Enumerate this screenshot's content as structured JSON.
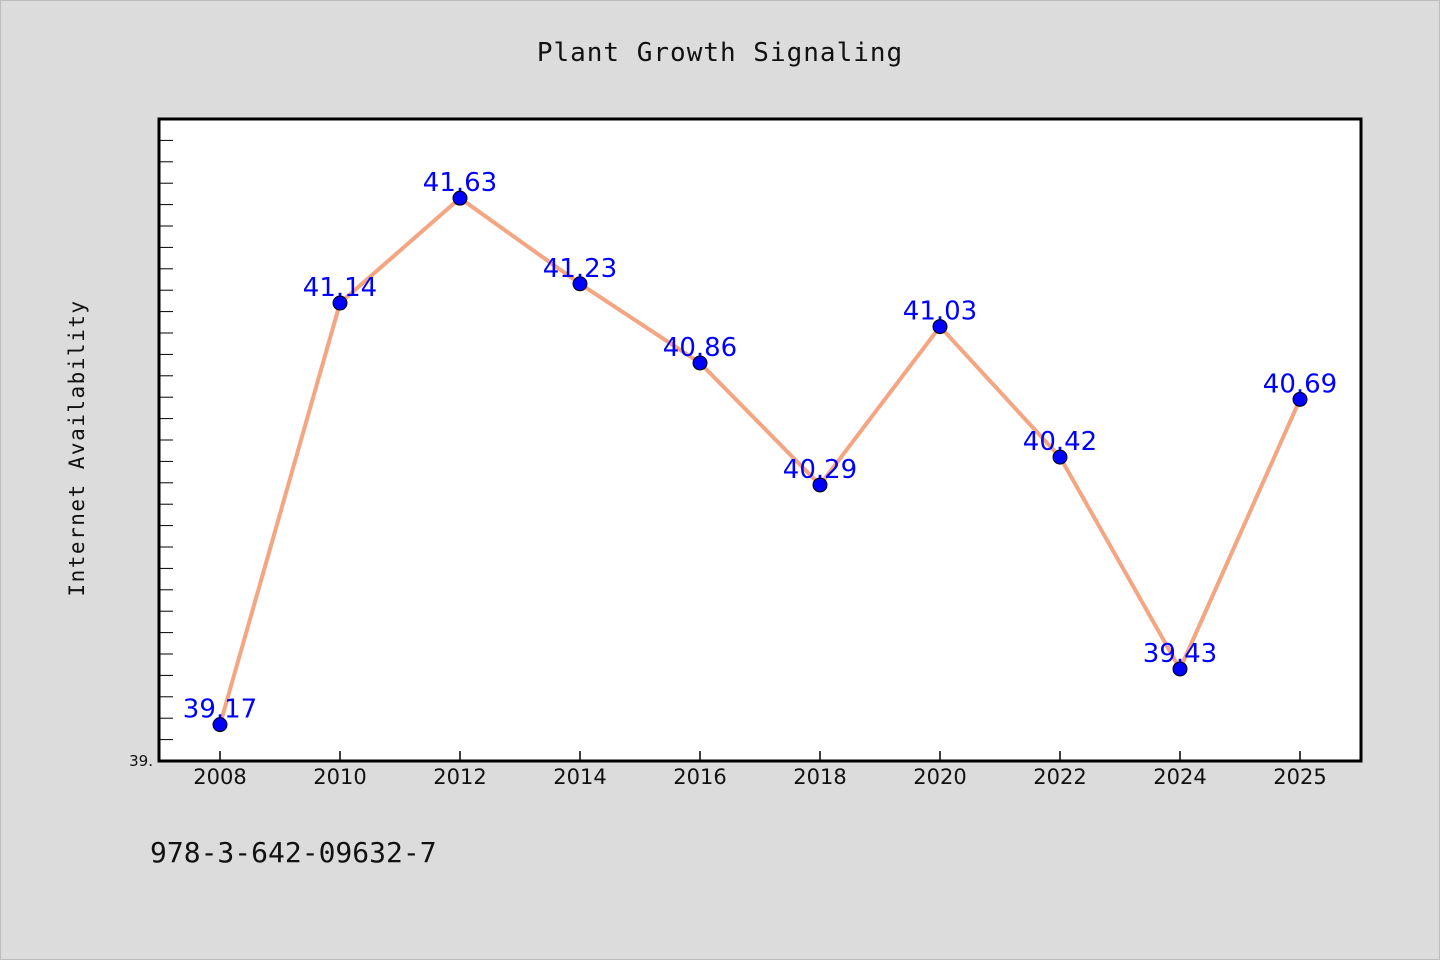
{
  "chart_data": {
    "type": "line",
    "title": "Plant Growth Signaling",
    "xlabel": "",
    "ylabel": "Internet Availability",
    "categories": [
      "2008",
      "2010",
      "2012",
      "2014",
      "2016",
      "2018",
      "2020",
      "2022",
      "2024",
      "2025"
    ],
    "series": [
      {
        "values": [
          39.17,
          41.14,
          41.63,
          41.23,
          40.86,
          40.29,
          41.03,
          40.42,
          39.43,
          40.69
        ]
      }
    ],
    "data_labels": [
      "39.17",
      "41.14",
      "41.63",
      "41.23",
      "40.86",
      "40.29",
      "41.03",
      "40.42",
      "39.43",
      "40.69"
    ],
    "ylim": [
      39.0,
      42.0
    ],
    "ytick_label": "39.",
    "grid": false,
    "line_color": "#f4a582",
    "marker_color": "#0000ff",
    "label_color": "#0000ff"
  },
  "footer": {
    "code": "978-3-642-09632-7"
  }
}
